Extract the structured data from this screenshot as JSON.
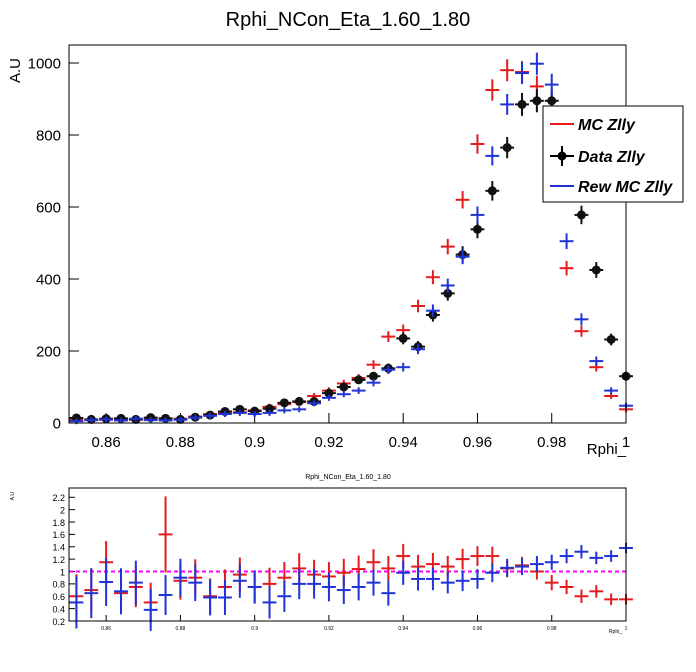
{
  "chart_data": [
    {
      "type": "scatter",
      "title": "Rphi_NCon_Eta_1.60_1.80",
      "xlabel": "Rphi_",
      "ylabel": "A.U",
      "xlim": [
        0.85,
        1.0
      ],
      "ylim": [
        0,
        1050
      ],
      "x_ticks": [
        0.86,
        0.88,
        0.9,
        0.92,
        0.94,
        0.96,
        0.98,
        1
      ],
      "x_tick_labels": [
        "0.86",
        "0.88",
        "0.9",
        "0.92",
        "0.94",
        "0.96",
        "0.98",
        "1"
      ],
      "y_ticks": [
        0,
        200,
        400,
        600,
        800,
        1000
      ],
      "y_tick_labels": [
        "0",
        "200",
        "400",
        "600",
        "800",
        "1000"
      ],
      "grid": false,
      "legend_position": "right",
      "x": [
        0.852,
        0.856,
        0.86,
        0.864,
        0.868,
        0.872,
        0.876,
        0.88,
        0.884,
        0.888,
        0.892,
        0.896,
        0.9,
        0.904,
        0.908,
        0.912,
        0.916,
        0.92,
        0.924,
        0.928,
        0.932,
        0.936,
        0.94,
        0.944,
        0.948,
        0.952,
        0.956,
        0.96,
        0.964,
        0.968,
        0.972,
        0.976,
        0.98,
        0.984,
        0.988,
        0.992,
        0.996,
        1.0
      ],
      "series": [
        {
          "name": "MC Zlly",
          "color": "#e41a1c",
          "style": "cross",
          "values": [
            9,
            8,
            9,
            10,
            9,
            12,
            10,
            12,
            18,
            25,
            30,
            30,
            35,
            45,
            52,
            58,
            75,
            90,
            110,
            125,
            162,
            240,
            258,
            325,
            405,
            490,
            620,
            775,
            925,
            980,
            975,
            935,
            660,
            430,
            255,
            155,
            75,
            38
          ]
        },
        {
          "name": "Data Zlly",
          "color": "#111111",
          "style": "marker",
          "values": [
            14,
            10,
            12,
            13,
            10,
            15,
            13,
            10,
            16,
            22,
            32,
            38,
            33,
            40,
            56,
            60,
            60,
            83,
            100,
            120,
            130,
            152,
            235,
            212,
            300,
            360,
            468,
            538,
            645,
            765,
            885,
            895,
            895,
            785,
            578,
            425,
            232,
            130
          ]
        },
        {
          "name": "Rew MC Zlly",
          "color": "#1f33d6",
          "style": "cross",
          "values": [
            5,
            8,
            10,
            7,
            12,
            8,
            7,
            9,
            15,
            20,
            25,
            28,
            25,
            28,
            35,
            38,
            55,
            70,
            80,
            90,
            112,
            148,
            155,
            205,
            312,
            382,
            462,
            578,
            742,
            885,
            972,
            998,
            940,
            505,
            288,
            172,
            90,
            48
          ]
        }
      ]
    },
    {
      "type": "scatter",
      "title": "Rphi_NCon_Eta_1.60_1.80",
      "xlabel": "Rphi_",
      "ylabel": "A.U",
      "xlim": [
        0.85,
        1.0
      ],
      "ylim": [
        0.2,
        2.35
      ],
      "x_ticks": [
        0.86,
        0.88,
        0.9,
        0.92,
        0.94,
        0.96,
        0.98,
        1
      ],
      "x_tick_labels": [
        "0.86",
        "0.88",
        "0.9",
        "0.92",
        "0.94",
        "0.96",
        "0.98",
        "1"
      ],
      "y_ticks": [
        0.2,
        0.4,
        0.6,
        0.8,
        1,
        1.2,
        1.4,
        1.6,
        1.8,
        2,
        2.2
      ],
      "y_tick_labels": [
        "0.2",
        "0.4",
        "0.6",
        "0.8",
        "1",
        "1.2",
        "1.4",
        "1.6",
        "1.8",
        "2",
        "2.2"
      ],
      "reference_line": {
        "y": 1,
        "color": "#ff00ff",
        "style": "dashed"
      },
      "x": [
        0.852,
        0.856,
        0.86,
        0.864,
        0.868,
        0.872,
        0.876,
        0.88,
        0.884,
        0.888,
        0.892,
        0.896,
        0.9,
        0.904,
        0.908,
        0.912,
        0.916,
        0.92,
        0.924,
        0.928,
        0.932,
        0.936,
        0.94,
        0.944,
        0.948,
        0.952,
        0.956,
        0.96,
        0.964,
        0.968,
        0.972,
        0.976,
        0.98,
        0.984,
        0.988,
        0.992,
        0.996,
        1.0
      ],
      "series": [
        {
          "name": "MC Zlly",
          "color": "#e41a1c",
          "values": [
            0.6,
            0.7,
            1.15,
            0.65,
            0.75,
            0.5,
            1.6,
            0.85,
            0.9,
            0.6,
            0.75,
            0.95,
            0.75,
            0.8,
            0.9,
            1.05,
            0.95,
            0.92,
            0.98,
            1.04,
            1.15,
            1.05,
            1.25,
            1.08,
            1.12,
            1.08,
            1.2,
            1.25,
            1.25,
            1.05,
            1.1,
            1.0,
            0.82,
            0.75,
            0.6,
            0.68,
            0.55,
            0.55
          ]
        },
        {
          "name": "Rew MC Zlly",
          "color": "#1f33d6",
          "values": [
            0.5,
            0.65,
            0.83,
            0.68,
            0.82,
            0.38,
            0.62,
            0.9,
            0.82,
            0.58,
            0.58,
            0.85,
            0.75,
            0.5,
            0.6,
            0.8,
            0.8,
            0.75,
            0.7,
            0.75,
            0.82,
            0.65,
            0.98,
            0.88,
            0.88,
            0.82,
            0.85,
            0.88,
            0.98,
            1.06,
            1.08,
            1.12,
            1.15,
            1.25,
            1.32,
            1.22,
            1.25,
            1.38
          ]
        }
      ]
    }
  ]
}
